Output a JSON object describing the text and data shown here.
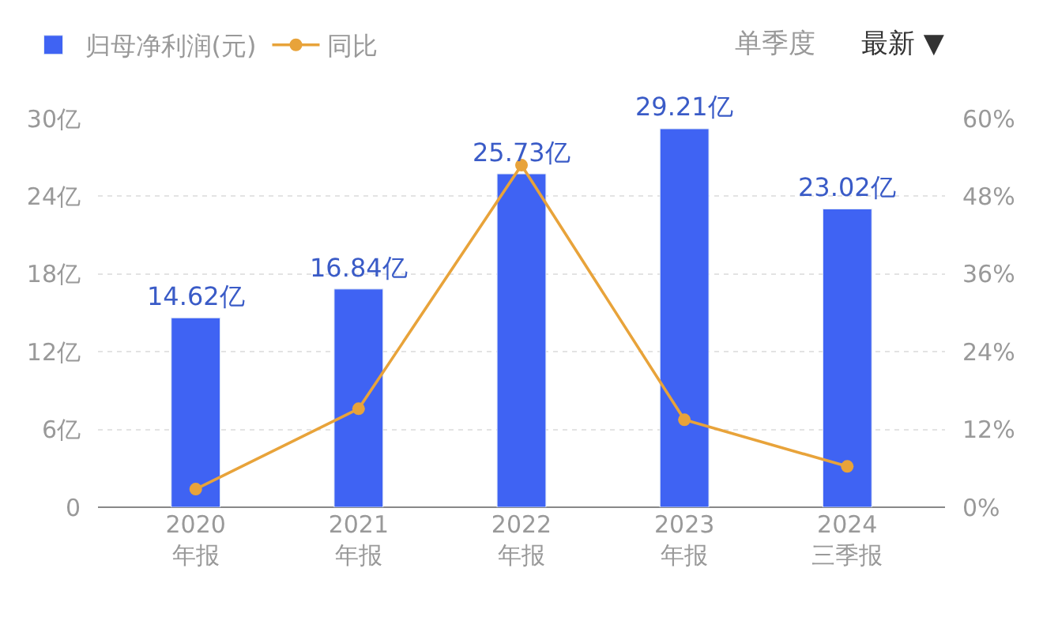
{
  "chart_data": {
    "type": "bar",
    "categories": [
      "2020\n年报",
      "2021\n年报",
      "2022\n年报",
      "2023\n年报",
      "2024\n三季报"
    ],
    "series": [
      {
        "name": "归母净利润(元)",
        "color": "#3f63f3",
        "values": [
          14.62,
          16.84,
          25.73,
          29.21,
          23.02
        ],
        "value_labels": [
          "14.62亿",
          "16.84亿",
          "25.73亿",
          "29.21亿",
          "23.02亿"
        ]
      },
      {
        "name": "同比",
        "type": "line",
        "axis": "y2",
        "color": "#e8a33a",
        "values": [
          2.8,
          15.2,
          52.8,
          13.5,
          6.3
        ]
      }
    ],
    "ylim": [
      0,
      30
    ],
    "yticks": [
      0,
      {
        "value": 6,
        "label": "6亿"
      },
      {
        "value": 12,
        "label": "12亿"
      },
      {
        "value": 18,
        "label": "18亿"
      },
      {
        "value": 24,
        "label": "24亿"
      },
      {
        "value": 30,
        "label": "30亿"
      }
    ],
    "y2lim": [
      0,
      60
    ],
    "y2ticks": [
      {
        "value": 0,
        "label": "0%"
      },
      {
        "value": 12,
        "label": "12%"
      },
      {
        "value": 24,
        "label": "24%"
      },
      {
        "value": 36,
        "label": "36%"
      },
      {
        "value": 48,
        "label": "48%"
      },
      {
        "value": 60,
        "label": "60%"
      }
    ],
    "annotations": [
      "单季度",
      "最新 ▼"
    ],
    "grid": "y",
    "legend": "top left",
    "marker": "circle",
    "line_style": "solid"
  }
}
